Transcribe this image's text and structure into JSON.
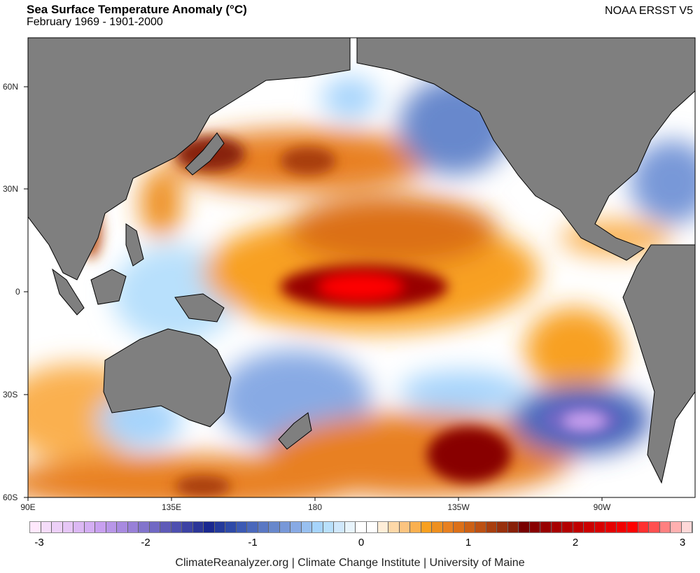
{
  "header": {
    "title": "Sea Surface Temperature Anomaly (°C)",
    "subtitle": "February 1969 - 1901-2000",
    "source": "NOAA ERSST V5"
  },
  "map": {
    "lat_labels": [
      "60N",
      "30N",
      "0",
      "30S",
      "60S"
    ],
    "lon_labels": [
      "90E",
      "135E",
      "180",
      "135W",
      "90W"
    ],
    "land_color": "#7f7f7f",
    "ocean_base_color": "#ffffff"
  },
  "colorbar": {
    "min": -3.1,
    "max": 3.1,
    "step": 0.1,
    "tick_labels": [
      "-3",
      "-2",
      "-1",
      "0",
      "1",
      "2",
      "3"
    ],
    "colors": [
      "#ffe8fc",
      "#f5dcfa",
      "#edd0f8",
      "#e6c6f6",
      "#dcb8f4",
      "#d4aef4",
      "#c8a0f0",
      "#b896e8",
      "#a88ae0",
      "#9880d8",
      "#8274cc",
      "#7068c4",
      "#5e5ab8",
      "#4e50b0",
      "#3c42a4",
      "#2c3698",
      "#1a2890",
      "#243a9c",
      "#2e4aa8",
      "#3c5ab4",
      "#4a68bc",
      "#5a78c4",
      "#6888cc",
      "#7898d8",
      "#88aae4",
      "#98c0f0",
      "#a6d4fc",
      "#b8e0fc",
      "#d0e8fc",
      "#e8f4fc",
      "#ffffff",
      "#ffffff",
      "#ffeed8",
      "#fed8a8",
      "#fcc480",
      "#fab050",
      "#f8a020",
      "#ee9020",
      "#e88020",
      "#dc7018",
      "#cc6014",
      "#bc5012",
      "#a83e0e",
      "#98300c",
      "#882008",
      "#780000",
      "#880000",
      "#980000",
      "#a80000",
      "#b40000",
      "#c00000",
      "#cc0000",
      "#d80000",
      "#e40000",
      "#f00000",
      "#ff0000",
      "#ff3030",
      "#ff5050",
      "#ff8080",
      "#ffb0b0",
      "#ffd8d8"
    ]
  },
  "footer": "ClimateReanalyzer.org | Climate Change Institute | University of Maine"
}
